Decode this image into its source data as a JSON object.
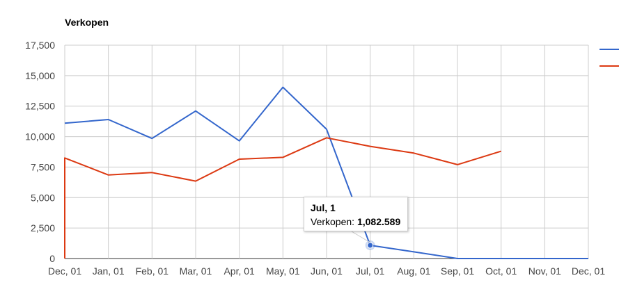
{
  "chart_data": {
    "type": "line",
    "title": "Verkopen",
    "x": [
      "Dec, 01",
      "Jan, 01",
      "Feb, 01",
      "Mar, 01",
      "Apr, 01",
      "May, 01",
      "Jun, 01",
      "Jul, 01",
      "Aug, 01",
      "Sep, 01",
      "Oct, 01",
      "Nov, 01",
      "Dec, 01"
    ],
    "y_ticks": [
      "0",
      "2,500",
      "5,000",
      "7,500",
      "10,000",
      "12,500",
      "15,000",
      "17,500"
    ],
    "ylim": [
      0,
      17500
    ],
    "grid": true,
    "legend_position": "right",
    "series": [
      {
        "color": "#3366cc",
        "points": [
          {
            "x": 0,
            "y": 11100
          },
          {
            "x": 1,
            "y": 11400
          },
          {
            "x": 2,
            "y": 9850
          },
          {
            "x": 3,
            "y": 12100
          },
          {
            "x": 4,
            "y": 9650
          },
          {
            "x": 5,
            "y": 14050
          },
          {
            "x": 6,
            "y": 10600
          },
          {
            "x": 7,
            "y": 1082.589
          },
          {
            "x": 8,
            "y": 550
          },
          {
            "x": 9,
            "y": 0
          },
          {
            "x": 10,
            "y": 0
          },
          {
            "x": 11,
            "y": 0
          },
          {
            "x": 12,
            "y": 0
          }
        ]
      },
      {
        "color": "#dc3912",
        "points": [
          {
            "x": 0,
            "y": 0
          },
          {
            "x": 0,
            "y": 8250
          },
          {
            "x": 1,
            "y": 6850
          },
          {
            "x": 2,
            "y": 7050
          },
          {
            "x": 3,
            "y": 6350
          },
          {
            "x": 4,
            "y": 8150
          },
          {
            "x": 5,
            "y": 8300
          },
          {
            "x": 6,
            "y": 9900
          },
          {
            "x": 7,
            "y": 9200
          },
          {
            "x": 8,
            "y": 8650
          },
          {
            "x": 9,
            "y": 7700
          },
          {
            "x": 10,
            "y": 8800
          }
        ]
      }
    ],
    "tooltip": {
      "title": "Jul, 1",
      "label": "Verkopen:",
      "value": "1,082.589",
      "series_index": 0,
      "point_index": 7
    }
  }
}
